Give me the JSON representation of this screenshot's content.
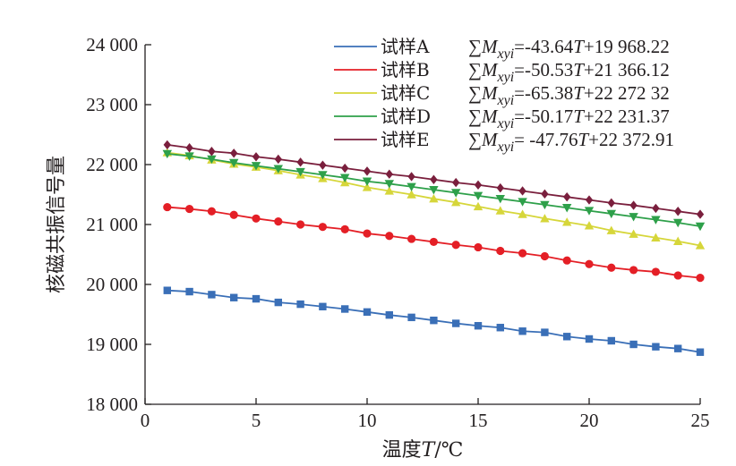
{
  "chart_data": {
    "type": "line",
    "title": "",
    "xlabel_prefix": "温度",
    "xlabel_var": "T",
    "xlabel_unit": "/℃",
    "ylabel": "核磁共振信号量",
    "xlim": [
      0,
      25
    ],
    "ylim": [
      18000,
      24000
    ],
    "xticks": [
      0,
      5,
      10,
      15,
      20,
      25
    ],
    "xtick_labels": [
      "0",
      "5",
      "10",
      "15",
      "20",
      "25"
    ],
    "yticks": [
      18000,
      19000,
      20000,
      21000,
      22000,
      23000,
      24000
    ],
    "ytick_labels": [
      "18 000",
      "19 000",
      "20 000",
      "21 000",
      "22 000",
      "23 000",
      "24 000"
    ],
    "grid": false,
    "legend_position": "top-right",
    "x": [
      1,
      2,
      3,
      4,
      5,
      6,
      7,
      8,
      9,
      10,
      11,
      12,
      13,
      14,
      15,
      16,
      17,
      18,
      19,
      20,
      21,
      22,
      23,
      24,
      25
    ],
    "series": [
      {
        "name": "试样A",
        "color": "#3a6fb7",
        "marker": "square",
        "equation": "=-43.64T+19 968.22",
        "eq_part1": "=-43.64",
        "eq_part2": "+19 968.22",
        "values": [
          19900,
          19880,
          19830,
          19780,
          19760,
          19700,
          19670,
          19630,
          19590,
          19540,
          19490,
          19450,
          19400,
          19350,
          19310,
          19280,
          19220,
          19200,
          19130,
          19090,
          19060,
          19000,
          18960,
          18930,
          18870
        ]
      },
      {
        "name": "试样B",
        "color": "#e41f26",
        "marker": "circle",
        "equation": "=-50.53T+21 366.12",
        "eq_part1": "=-50.53",
        "eq_part2": "+21 366.12",
        "values": [
          21290,
          21260,
          21220,
          21160,
          21100,
          21050,
          21000,
          20960,
          20920,
          20850,
          20810,
          20760,
          20710,
          20660,
          20620,
          20560,
          20520,
          20470,
          20400,
          20340,
          20280,
          20240,
          20210,
          20150,
          20110
        ]
      },
      {
        "name": "试样C",
        "color": "#d6d63a",
        "marker": "triangle-up",
        "equation": "=-65.38T+22 272 32",
        "eq_part1": "=-65.38",
        "eq_part2": "+22 272 32",
        "values": [
          22200,
          22150,
          22080,
          22010,
          21960,
          21900,
          21830,
          21770,
          21700,
          21620,
          21560,
          21500,
          21430,
          21370,
          21300,
          21230,
          21170,
          21100,
          21040,
          20980,
          20900,
          20840,
          20780,
          20720,
          20650
        ]
      },
      {
        "name": "试样D",
        "color": "#2ea04a",
        "marker": "triangle-down",
        "equation": "=-50.17T+22 231.37",
        "eq_part1": "=-50.17",
        "eq_part2": "+22 231.37",
        "values": [
          22180,
          22140,
          22090,
          22030,
          21980,
          21930,
          21880,
          21830,
          21780,
          21720,
          21680,
          21630,
          21580,
          21530,
          21480,
          21430,
          21380,
          21330,
          21280,
          21230,
          21180,
          21130,
          21080,
          21030,
          20970
        ]
      },
      {
        "name": "试样E",
        "color": "#7a1f3d",
        "marker": "diamond",
        "equation": "= -47.76T+22 372.91",
        "eq_part1": "= -47.76",
        "eq_part2": "+22 372.91",
        "values": [
          22330,
          22280,
          22220,
          22190,
          22130,
          22090,
          22040,
          21990,
          21940,
          21890,
          21840,
          21800,
          21750,
          21700,
          21660,
          21610,
          21560,
          21510,
          21460,
          21410,
          21360,
          21320,
          21270,
          21220,
          21170
        ]
      }
    ],
    "legend_sum_symbol": "∑",
    "legend_var_main": "M",
    "legend_var_sub": "xyi",
    "legend_var_T": "T"
  }
}
